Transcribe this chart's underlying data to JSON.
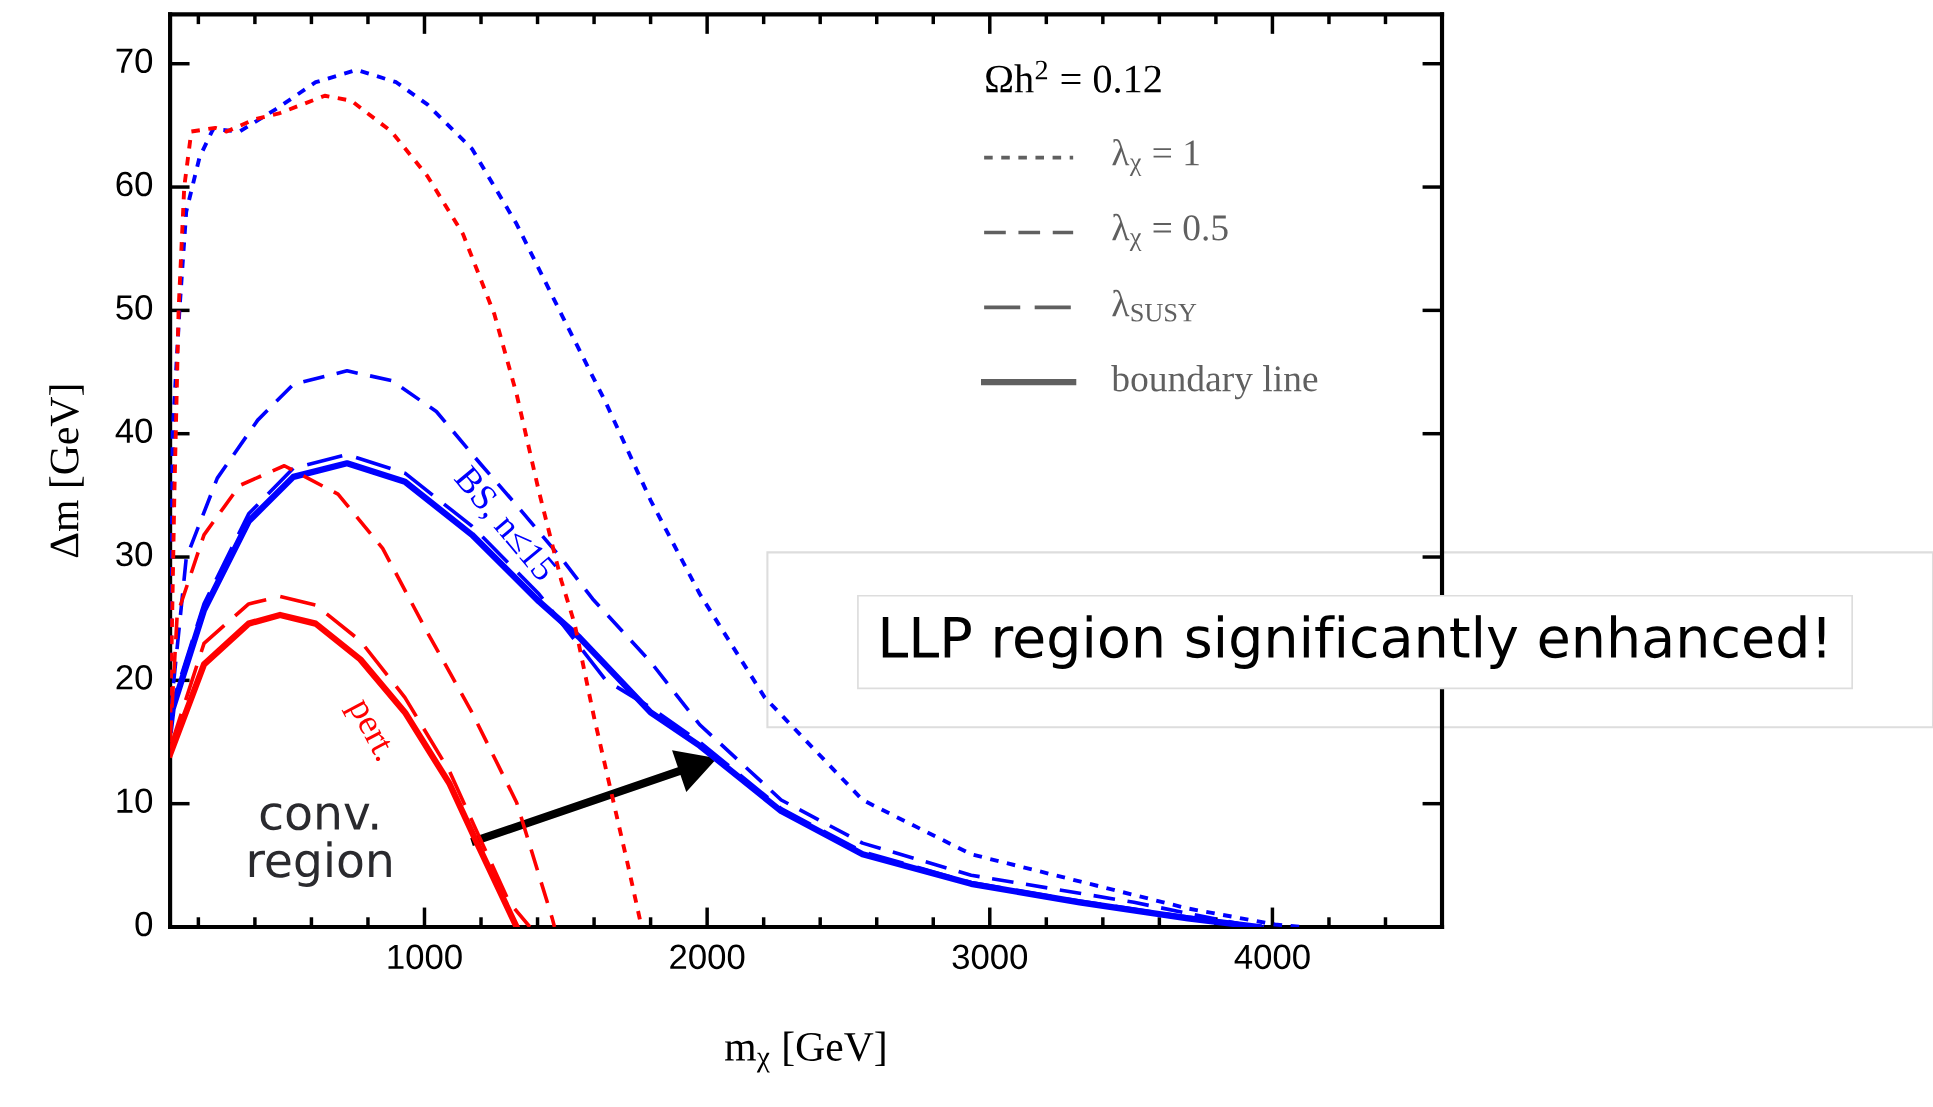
{
  "chart_data": {
    "type": "line",
    "xlabel": "m$_{χ}$ [GeV]",
    "ylabel": "Δm [GeV]",
    "grid": false,
    "xlim": [
      100,
      4600
    ],
    "ylim": [
      0,
      74
    ],
    "xticks": [
      1000,
      2000,
      3000,
      4000
    ],
    "yticks": [
      0,
      10,
      20,
      30,
      40,
      50,
      60,
      70
    ],
    "series": [
      {
        "color": "#0000ff",
        "line_style": "dotted",
        "x": [
          100,
          109,
          133,
          157,
          204,
          252,
          346,
          473,
          615,
          760,
          900,
          1010,
          1168,
          1326,
          1484,
          1642,
          1800,
          1974,
          2204,
          2550,
          2934,
          3318,
          3701,
          4009,
          4105
        ],
        "values": [
          16,
          40,
          50,
          58,
          62.4,
          64.7,
          64.5,
          66.3,
          68.5,
          69.5,
          68.5,
          66.7,
          63.1,
          57,
          49.7,
          42.5,
          34.6,
          27,
          18.6,
          10.3,
          5.9,
          3.7,
          1.5,
          0.2,
          0
        ]
      },
      {
        "color": "#0000ff",
        "line_style": "dashed",
        "x": [
          100,
          157,
          267,
          410,
          536,
          726,
          884,
          1042,
          1200,
          1326,
          1484,
          1595,
          1800,
          1974,
          2262,
          2550,
          2934,
          3510,
          3894,
          3970
        ],
        "values": [
          17,
          29.9,
          36.4,
          41.1,
          44,
          45.1,
          44.3,
          41.8,
          37.5,
          34.2,
          29.9,
          26.6,
          21.5,
          16.4,
          10.3,
          6.8,
          4.2,
          2.0,
          0.2,
          0
        ]
      },
      {
        "color": "#0000ff",
        "line_style": "longdash",
        "x": [
          100,
          109,
          220,
          378,
          536,
          726,
          931,
          1168,
          1405,
          1642,
          1800,
          1974,
          2262,
          2550,
          2934,
          3318,
          3701,
          3960
        ],
        "values": [
          16.5,
          18.2,
          26.2,
          33.5,
          37.2,
          38.3,
          36.8,
          32.5,
          27,
          20,
          17.8,
          15,
          9.6,
          6.1,
          3.6,
          2.1,
          0.8,
          0
        ]
      },
      {
        "color": "#0000ff",
        "line_style": "solid",
        "x": [
          100,
          109,
          220,
          378,
          536,
          726,
          931,
          1168,
          1405,
          1547,
          1800,
          1974,
          2262,
          2550,
          2934,
          3318,
          3701,
          3951
        ],
        "values": [
          16,
          17.7,
          25.7,
          32.9,
          36.5,
          37.6,
          36.1,
          31.8,
          26.4,
          23.5,
          17.4,
          14.7,
          9.4,
          5.9,
          3.5,
          2.0,
          0.7,
          0
        ]
      },
      {
        "color": "#ff0000",
        "line_style": "dotted",
        "x": [
          100,
          115,
          130,
          150,
          175,
          260,
          300,
          400,
          489,
          647,
          741,
          883,
          1010,
          1136,
          1247,
          1326,
          1405,
          1484,
          1531,
          1600,
          1658,
          1720,
          1768
        ],
        "values": [
          16,
          35,
          50,
          60,
          64.5,
          64.8,
          64.5,
          65.5,
          66,
          67.4,
          67,
          64.5,
          60.9,
          56.2,
          49.7,
          43.2,
          35.3,
          28.1,
          24.6,
          17,
          11.2,
          5,
          0
        ]
      },
      {
        "color": "#ff0000",
        "line_style": "dashed",
        "x": [
          100,
          125,
          220,
          346,
          504,
          694,
          852,
          1010,
          1168,
          1326,
          1452,
          1460
        ],
        "values": [
          15,
          25.3,
          31.8,
          35.8,
          37.4,
          35.1,
          30.7,
          23.9,
          17.4,
          10.1,
          0.7,
          0
        ]
      },
      {
        "color": "#ff0000",
        "line_style": "longdash",
        "x": [
          100,
          220,
          378,
          489,
          615,
          773,
          931,
          1089,
          1184,
          1300,
          1373
        ],
        "values": [
          14.5,
          23,
          26.2,
          26.8,
          26.1,
          23.2,
          18.6,
          12.6,
          7.8,
          2,
          0
        ]
      },
      {
        "color": "#ff0000",
        "line_style": "solid",
        "x": [
          100,
          220,
          378,
          489,
          615,
          773,
          931,
          1089,
          1184,
          1326
        ],
        "values": [
          14,
          21.3,
          24.6,
          25.3,
          24.6,
          21.7,
          17.4,
          11.6,
          6.9,
          0
        ]
      }
    ],
    "annotations": [
      "Ωh$^{2}$ = 0.12",
      "λ$_{χ}$ = 1",
      "λ$_{χ}$ = 0.5",
      "λ$_{SUSY}$",
      "boundary line",
      "BS, n≤15",
      "pert.",
      "conv. region",
      "LLP region significantly enhanced!"
    ]
  }
}
